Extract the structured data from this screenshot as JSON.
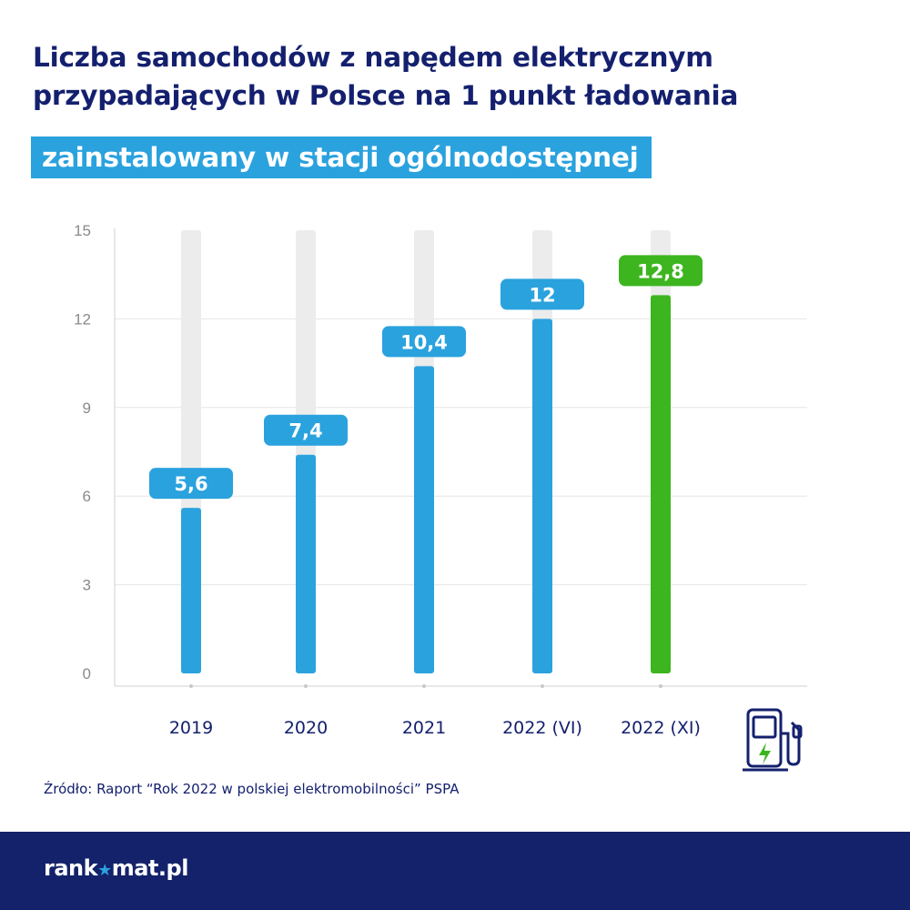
{
  "title": "Liczba samochodów z napędem elektrycznym przypadających w Polsce na 1 punkt ładowania",
  "subtitle": "zainstalowany w stacji ogólnodostępnej",
  "source": "Źródło: Raport “Rok 2022 w polskiej elektromobilności” PSPA",
  "logo": {
    "prefix": "rank",
    "star": "★",
    "suffix": "mat.pl"
  },
  "colors": {
    "title": "#14206e",
    "bar": "#2aa2de",
    "highlight": "#3db51f",
    "track": "#ececec",
    "footer": "#13226a"
  },
  "icons": [
    "ev-charging-station-icon"
  ],
  "chart_data": {
    "type": "bar",
    "categories": [
      "2019",
      "2020",
      "2021",
      "2022 (VI)",
      "2022 (XI)"
    ],
    "values": [
      5.6,
      7.4,
      10.4,
      12,
      12.8
    ],
    "value_labels": [
      "5,6",
      "7,4",
      "10,4",
      "12",
      "12,8"
    ],
    "highlight_index": 4,
    "ylim": [
      0,
      15
    ],
    "yticks": [
      0,
      3,
      6,
      9,
      12,
      15
    ],
    "grid": true,
    "legend": "none"
  }
}
